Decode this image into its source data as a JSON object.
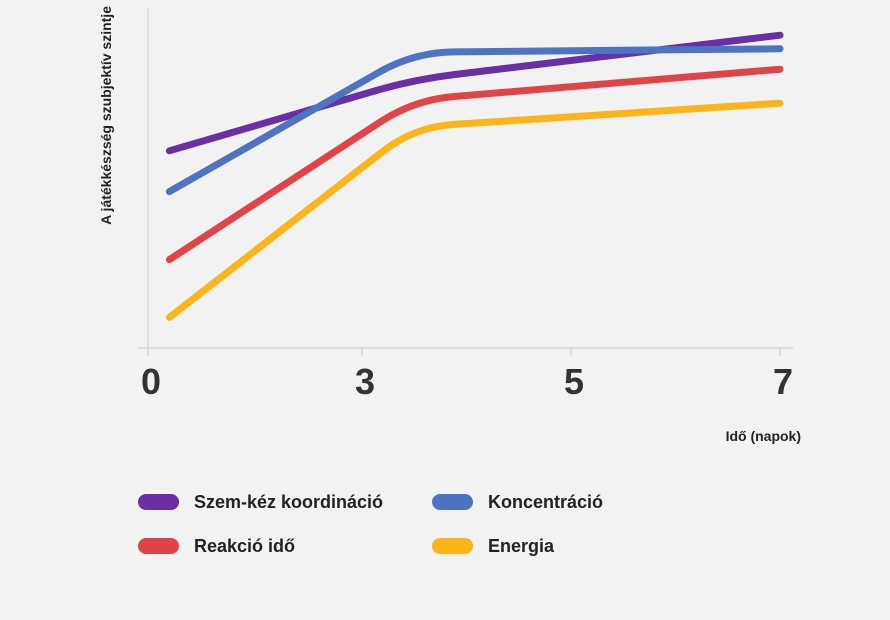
{
  "chart_data": {
    "type": "line",
    "xlabel": "Idő (napok)",
    "ylabel": "A játékkészség szubjektív szintje",
    "x_ticks": [
      "0",
      "3",
      "5",
      "7"
    ],
    "grid": false,
    "legend_position": "bottom",
    "series": [
      {
        "name": "Szem-kéz koordináció",
        "color": "#6b2fa5",
        "points": [
          [
            0.3,
            0.58
          ],
          [
            3.5,
            0.79
          ],
          [
            7,
            0.92
          ]
        ]
      },
      {
        "name": "Koncentráció",
        "color": "#4f73c3",
        "points": [
          [
            0.3,
            0.46
          ],
          [
            3.5,
            0.87
          ],
          [
            7,
            0.88
          ]
        ]
      },
      {
        "name": "Reakció idő",
        "color": "#e04448",
        "points": [
          [
            0.3,
            0.26
          ],
          [
            3.5,
            0.73
          ],
          [
            7,
            0.82
          ]
        ]
      },
      {
        "name": "Energia",
        "color": "#fbb41a",
        "points": [
          [
            0.3,
            0.09
          ],
          [
            3.5,
            0.65
          ],
          [
            7,
            0.72
          ]
        ]
      }
    ]
  }
}
